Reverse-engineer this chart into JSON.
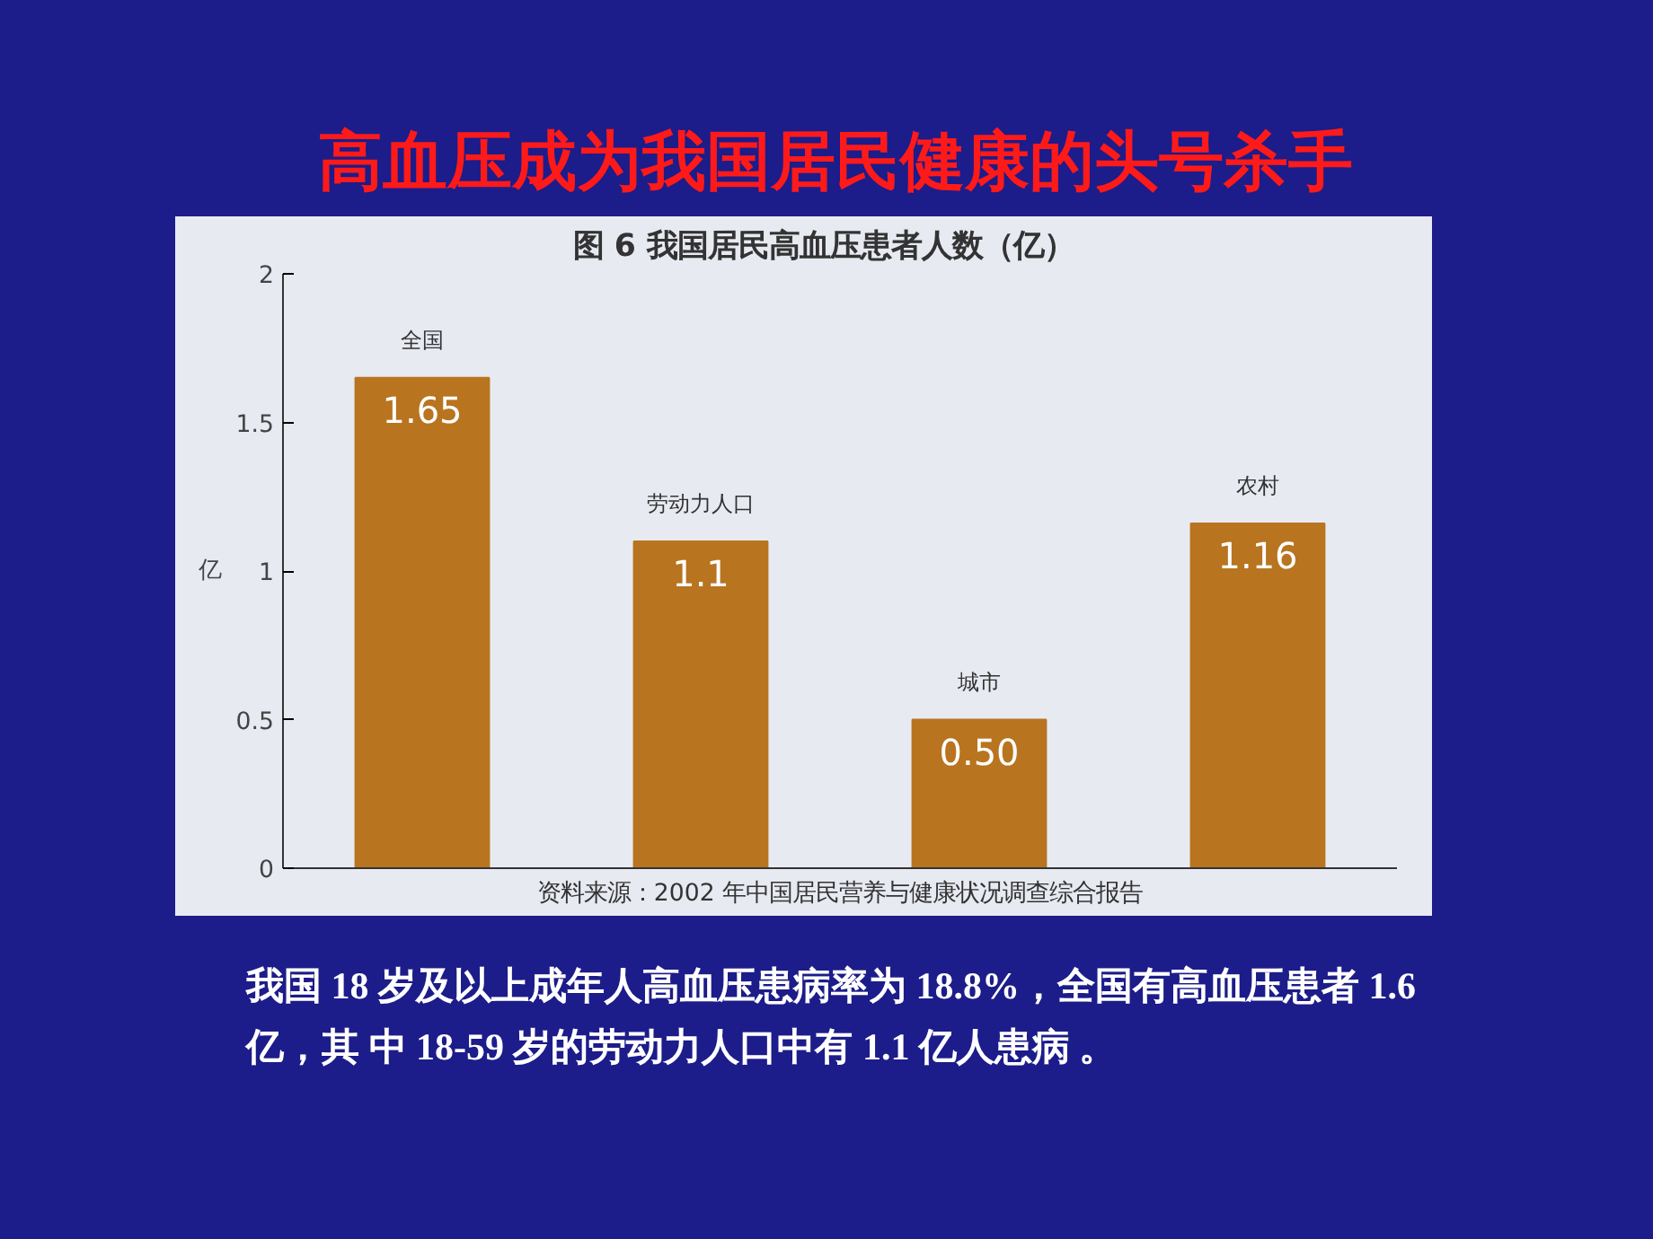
{
  "chart_data": {
    "type": "bar",
    "title": "高血压成为我国居民健康的头号杀手",
    "subtitle": "图 6    我国居民高血压患者人数（亿）",
    "ylabel": "亿",
    "categories": [
      "全国",
      "劳动力人口",
      "城市",
      "农村"
    ],
    "values": [
      1.65,
      1.1,
      0.5,
      1.16
    ],
    "value_labels": [
      "1.65",
      "1.1",
      "0.50",
      "1.16"
    ],
    "color": "#b8741f",
    "ylim": [
      0,
      2
    ],
    "yticks": [
      0,
      0.5,
      1,
      1.5,
      2
    ],
    "grid": false,
    "tick_labels": "y",
    "annotations": [
      "资料来源：2002 年中国居民营养与健康状况调查综合报告",
      "我国 18 岁及以上成年人高血压患病率为 18.8%，全国有高血压患者 1.6 亿，其 中 18-59 岁的劳动力人口中有 1.1 亿人患病 。"
    ]
  }
}
